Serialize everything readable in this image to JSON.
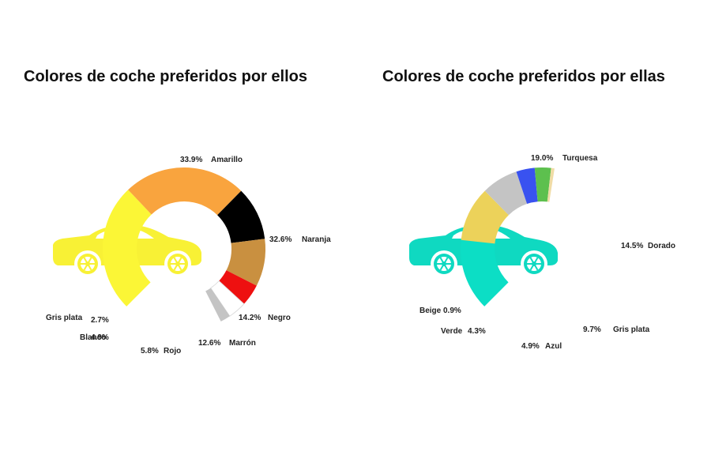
{
  "chart_data": [
    {
      "type": "pie",
      "title": "Colores de coche preferidos por ellos",
      "car_color": "#f8f135",
      "slices": [
        {
          "label": "Amarillo",
          "value": 33.9,
          "pct": "33.9%",
          "color": "#fbf636"
        },
        {
          "label": "Naranja",
          "value": 32.6,
          "pct": "32.6%",
          "color": "#f9a43e"
        },
        {
          "label": "Negro",
          "value": 14.2,
          "pct": "14.2%",
          "color": "#000000"
        },
        {
          "label": "Marrón",
          "value": 12.6,
          "pct": "12.6%",
          "color": "#c99040"
        },
        {
          "label": "Rojo",
          "value": 5.8,
          "pct": "5.8%",
          "color": "#ee1010"
        },
        {
          "label": "Blanco",
          "value": 4.9,
          "pct": "4.9%",
          "color": "#ffffff"
        },
        {
          "label": "Gris plata",
          "value": 2.7,
          "pct": "2.7%",
          "color": "#c4c4c4"
        }
      ]
    },
    {
      "type": "pie",
      "title": "Colores de coche preferidos por ellas",
      "car_color": "#0fd9c1",
      "slices": [
        {
          "label": "Turquesa",
          "value": 19.0,
          "pct": "19.0%",
          "color": "#0cdec5"
        },
        {
          "label": "Dorado",
          "value": 14.5,
          "pct": "14.5%",
          "color": "#ecd25a"
        },
        {
          "label": "Gris plata",
          "value": 9.7,
          "pct": "9.7%",
          "color": "#c4c4c4"
        },
        {
          "label": "Azul",
          "value": 4.9,
          "pct": "4.9%",
          "color": "#3952f0"
        },
        {
          "label": "Verde",
          "value": 4.3,
          "pct": "4.3%",
          "color": "#5dc04e"
        },
        {
          "label": "Beige",
          "value": 0.9,
          "pct": "0.9%",
          "color": "#f0dca6"
        }
      ]
    }
  ]
}
